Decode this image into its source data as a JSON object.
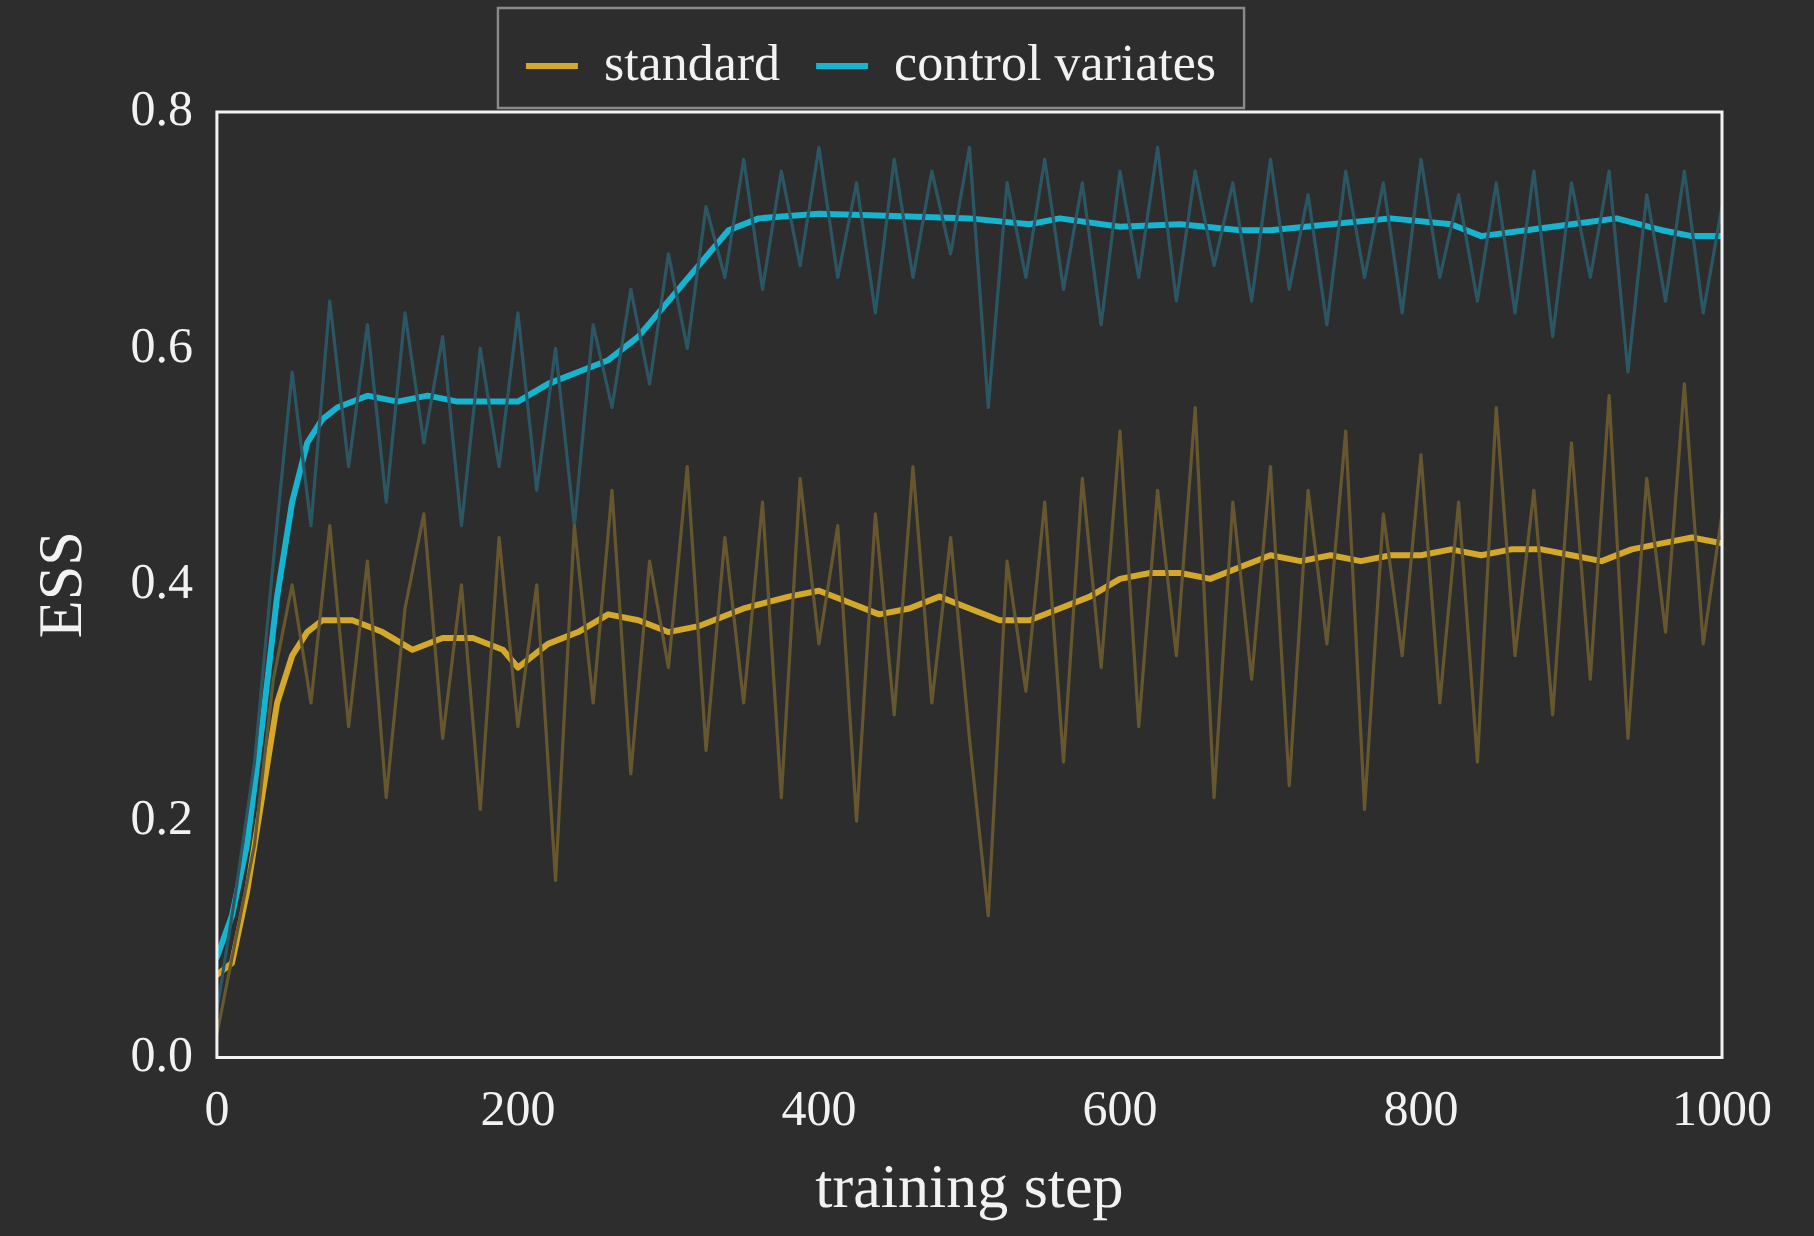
{
  "chart_data": {
    "type": "line",
    "xlabel": "training step",
    "ylabel": "ESS",
    "xlim": [
      0,
      1000
    ],
    "xticks": [
      0,
      200,
      400,
      600,
      800,
      1000
    ],
    "ylim": [
      0,
      0.8
    ],
    "yticks": [
      {
        "value": 0,
        "label": "0.0"
      },
      0.2,
      0.4,
      0.6,
      0.8
    ],
    "grid": false,
    "legend": "top",
    "marker": "none",
    "line_style": "solid",
    "series": [
      {
        "color": "#66572f",
        "x": [
          0,
          12.5,
          25,
          37.5,
          50,
          62.5,
          75,
          87.5,
          100,
          112.5,
          125,
          137.5,
          150,
          162.5,
          175,
          187.5,
          200,
          212.5,
          225,
          237.5,
          250,
          262.5,
          275,
          287.5,
          300,
          312.5,
          325,
          337.5,
          350,
          362.5,
          375,
          387.5,
          400,
          412.5,
          425,
          437.5,
          450,
          462.5,
          475,
          487.5,
          500,
          512.5,
          525,
          537.5,
          550,
          562.5,
          575,
          587.5,
          600,
          612.5,
          625,
          637.5,
          650,
          662.5,
          675,
          687.5,
          700,
          712.5,
          725,
          737.5,
          750,
          762.5,
          775,
          787.5,
          800,
          812.5,
          825,
          837.5,
          850,
          862.5,
          875,
          887.5,
          900,
          912.5,
          925,
          937.5,
          950,
          962.5,
          975,
          987.5,
          1000
        ],
        "values": [
          0.02,
          0.1,
          0.18,
          0.32,
          0.4,
          0.3,
          0.45,
          0.28,
          0.42,
          0.22,
          0.38,
          0.46,
          0.27,
          0.4,
          0.21,
          0.44,
          0.28,
          0.4,
          0.15,
          0.45,
          0.3,
          0.48,
          0.24,
          0.42,
          0.33,
          0.5,
          0.26,
          0.44,
          0.3,
          0.47,
          0.22,
          0.49,
          0.35,
          0.45,
          0.2,
          0.46,
          0.29,
          0.5,
          0.3,
          0.44,
          0.27,
          0.12,
          0.42,
          0.31,
          0.47,
          0.25,
          0.49,
          0.33,
          0.53,
          0.28,
          0.48,
          0.34,
          0.55,
          0.22,
          0.47,
          0.32,
          0.5,
          0.23,
          0.48,
          0.35,
          0.53,
          0.21,
          0.46,
          0.34,
          0.51,
          0.3,
          0.47,
          0.25,
          0.55,
          0.34,
          0.48,
          0.29,
          0.52,
          0.32,
          0.56,
          0.27,
          0.49,
          0.36,
          0.57,
          0.35,
          0.46
        ]
      },
      {
        "color": "#2b5764",
        "x": [
          0,
          12.5,
          25,
          37.5,
          50,
          62.5,
          75,
          87.5,
          100,
          112.5,
          125,
          137.5,
          150,
          162.5,
          175,
          187.5,
          200,
          212.5,
          225,
          237.5,
          250,
          262.5,
          275,
          287.5,
          300,
          312.5,
          325,
          337.5,
          350,
          362.5,
          375,
          387.5,
          400,
          412.5,
          425,
          437.5,
          450,
          462.5,
          475,
          487.5,
          500,
          512.5,
          525,
          537.5,
          550,
          562.5,
          575,
          587.5,
          600,
          612.5,
          625,
          637.5,
          650,
          662.5,
          675,
          687.5,
          700,
          712.5,
          725,
          737.5,
          750,
          762.5,
          775,
          787.5,
          800,
          812.5,
          825,
          837.5,
          850,
          862.5,
          875,
          887.5,
          900,
          912.5,
          925,
          937.5,
          950,
          962.5,
          975,
          987.5,
          1000
        ],
        "values": [
          0.04,
          0.14,
          0.25,
          0.42,
          0.58,
          0.45,
          0.64,
          0.5,
          0.62,
          0.47,
          0.63,
          0.52,
          0.61,
          0.45,
          0.6,
          0.5,
          0.63,
          0.48,
          0.6,
          0.45,
          0.62,
          0.55,
          0.65,
          0.57,
          0.68,
          0.6,
          0.72,
          0.66,
          0.76,
          0.65,
          0.75,
          0.67,
          0.77,
          0.66,
          0.74,
          0.63,
          0.76,
          0.66,
          0.75,
          0.68,
          0.77,
          0.55,
          0.74,
          0.66,
          0.76,
          0.65,
          0.74,
          0.62,
          0.75,
          0.66,
          0.77,
          0.64,
          0.75,
          0.67,
          0.74,
          0.64,
          0.76,
          0.65,
          0.73,
          0.62,
          0.75,
          0.66,
          0.74,
          0.63,
          0.76,
          0.66,
          0.73,
          0.64,
          0.74,
          0.63,
          0.75,
          0.61,
          0.74,
          0.66,
          0.75,
          0.58,
          0.73,
          0.64,
          0.75,
          0.63,
          0.72
        ]
      },
      {
        "name": "standard",
        "color": "#d4a82a",
        "x": [
          0,
          10,
          20,
          30,
          40,
          50,
          60,
          70,
          90,
          110,
          130,
          150,
          170,
          190,
          200,
          220,
          240,
          260,
          280,
          300,
          320,
          350,
          380,
          400,
          420,
          440,
          460,
          480,
          500,
          520,
          540,
          560,
          580,
          600,
          620,
          640,
          660,
          680,
          700,
          720,
          740,
          760,
          780,
          800,
          820,
          840,
          860,
          880,
          900,
          920,
          940,
          960,
          980,
          1000
        ],
        "values": [
          0.07,
          0.08,
          0.14,
          0.22,
          0.3,
          0.34,
          0.36,
          0.37,
          0.37,
          0.36,
          0.345,
          0.355,
          0.355,
          0.345,
          0.33,
          0.35,
          0.36,
          0.375,
          0.37,
          0.36,
          0.365,
          0.38,
          0.39,
          0.395,
          0.385,
          0.375,
          0.38,
          0.39,
          0.38,
          0.37,
          0.37,
          0.38,
          0.39,
          0.405,
          0.41,
          0.41,
          0.405,
          0.415,
          0.425,
          0.42,
          0.425,
          0.42,
          0.425,
          0.425,
          0.43,
          0.425,
          0.43,
          0.43,
          0.425,
          0.42,
          0.43,
          0.435,
          0.44,
          0.435
        ]
      },
      {
        "name": "control variates",
        "color": "#17b4d0",
        "x": [
          0,
          10,
          20,
          30,
          40,
          50,
          60,
          70,
          80,
          100,
          120,
          140,
          160,
          180,
          200,
          220,
          240,
          260,
          280,
          300,
          320,
          340,
          360,
          380,
          400,
          450,
          500,
          540,
          560,
          600,
          640,
          680,
          700,
          740,
          780,
          820,
          840,
          870,
          900,
          930,
          960,
          980,
          1000
        ],
        "values": [
          0.085,
          0.12,
          0.18,
          0.28,
          0.39,
          0.47,
          0.52,
          0.54,
          0.55,
          0.56,
          0.555,
          0.56,
          0.555,
          0.555,
          0.555,
          0.57,
          0.58,
          0.59,
          0.61,
          0.64,
          0.67,
          0.7,
          0.71,
          0.712,
          0.714,
          0.712,
          0.71,
          0.705,
          0.71,
          0.703,
          0.705,
          0.7,
          0.7,
          0.705,
          0.71,
          0.705,
          0.695,
          0.7,
          0.705,
          0.71,
          0.7,
          0.695,
          0.695
        ]
      }
    ]
  }
}
